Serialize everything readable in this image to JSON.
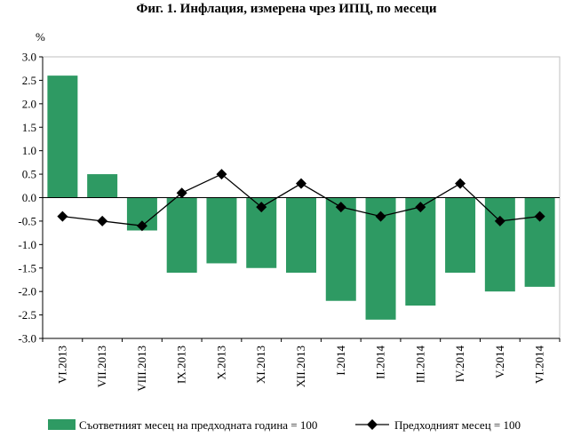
{
  "title": "Фиг. 1. Инфлация, измерена чрез ИПЦ, по месеци",
  "colors": {
    "bar": "#2e9a63",
    "line": "#000000",
    "axis": "#000000",
    "grid": "#bfbfbf"
  },
  "chart_data": {
    "type": "bar",
    "unit_label": "%",
    "categories": [
      "VI.2013",
      "VII.2013",
      "VIII.2013",
      "IX.2013",
      "X.2013",
      "XI.2013",
      "XII.2013",
      "I.2014",
      "II.2014",
      "III.2014",
      "IV.2014",
      "V.2014",
      "VI.2014"
    ],
    "ylim": [
      -3.0,
      3.0
    ],
    "yticks": [
      "3.0",
      "2.5",
      "2.0",
      "1.5",
      "1.0",
      "0.5",
      "0.0",
      "-0.5",
      "-1.0",
      "-1.5",
      "-2.0",
      "-2.5",
      "-3.0"
    ],
    "grid": false,
    "legend_position": "bottom",
    "series": [
      {
        "name": "Съответният месец на предходната година = 100",
        "type": "bar",
        "values": [
          2.6,
          0.5,
          -0.7,
          -1.6,
          -1.4,
          -1.5,
          -1.6,
          -2.2,
          -2.6,
          -2.3,
          -1.6,
          -2.0,
          -1.9
        ]
      },
      {
        "name": "Предходният месец = 100",
        "type": "line",
        "marker": "diamond",
        "values": [
          -0.4,
          -0.5,
          -0.6,
          0.1,
          0.5,
          -0.2,
          0.3,
          -0.2,
          -0.4,
          -0.2,
          0.3,
          -0.5,
          -0.4
        ]
      }
    ]
  }
}
